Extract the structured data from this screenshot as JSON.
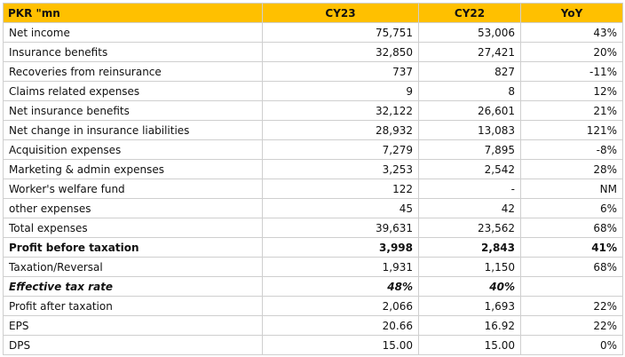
{
  "table": {
    "headers": [
      "PKR \"mn",
      "CY23",
      "CY22",
      "YoY"
    ],
    "rows": [
      {
        "label": "Net income",
        "cy23": "75,751",
        "cy22": "53,006",
        "yoy": "43%",
        "style": "normal"
      },
      {
        "label": "Insurance benefits",
        "cy23": "32,850",
        "cy22": "27,421",
        "yoy": "20%",
        "style": "normal"
      },
      {
        "label": "Recoveries from reinsurance",
        "cy23": "737",
        "cy22": "827",
        "yoy": "-11%",
        "style": "normal"
      },
      {
        "label": "Claims related expenses",
        "cy23": "9",
        "cy22": "8",
        "yoy": "12%",
        "style": "normal"
      },
      {
        "label": "Net insurance benefits",
        "cy23": "32,122",
        "cy22": "26,601",
        "yoy": "21%",
        "style": "normal"
      },
      {
        "label": "Net change in insurance liabilities",
        "cy23": "28,932",
        "cy22": "13,083",
        "yoy": "121%",
        "style": "normal"
      },
      {
        "label": "Acquisition expenses",
        "cy23": "7,279",
        "cy22": "7,895",
        "yoy": "-8%",
        "style": "normal"
      },
      {
        "label": "Marketing & admin expenses",
        "cy23": "3,253",
        "cy22": "2,542",
        "yoy": "28%",
        "style": "normal"
      },
      {
        "label": "Worker's welfare fund",
        "cy23": "122",
        "cy22": "-",
        "yoy": "NM",
        "style": "normal"
      },
      {
        "label": "other expenses",
        "cy23": "45",
        "cy22": "42",
        "yoy": "6%",
        "style": "normal"
      },
      {
        "label": "Total expenses",
        "cy23": "39,631",
        "cy22": "23,562",
        "yoy": "68%",
        "style": "normal"
      },
      {
        "label": "Profit before taxation",
        "cy23": "3,998",
        "cy22": "2,843",
        "yoy": "41%",
        "style": "bold"
      },
      {
        "label": "Taxation/Reversal",
        "cy23": "1,931",
        "cy22": "1,150",
        "yoy": "68%",
        "style": "normal"
      },
      {
        "label": "Effective tax rate",
        "cy23": "48%",
        "cy22": "40%",
        "yoy": "",
        "style": "bolditalic"
      },
      {
        "label": "Profit after taxation",
        "cy23": "2,066",
        "cy22": "1,693",
        "yoy": "22%",
        "style": "normal"
      },
      {
        "label": "EPS",
        "cy23": "20.66",
        "cy22": "16.92",
        "yoy": "22%",
        "style": "normal"
      },
      {
        "label": "DPS",
        "cy23": "15.00",
        "cy22": "15.00",
        "yoy": "0%",
        "style": "normal"
      }
    ]
  }
}
